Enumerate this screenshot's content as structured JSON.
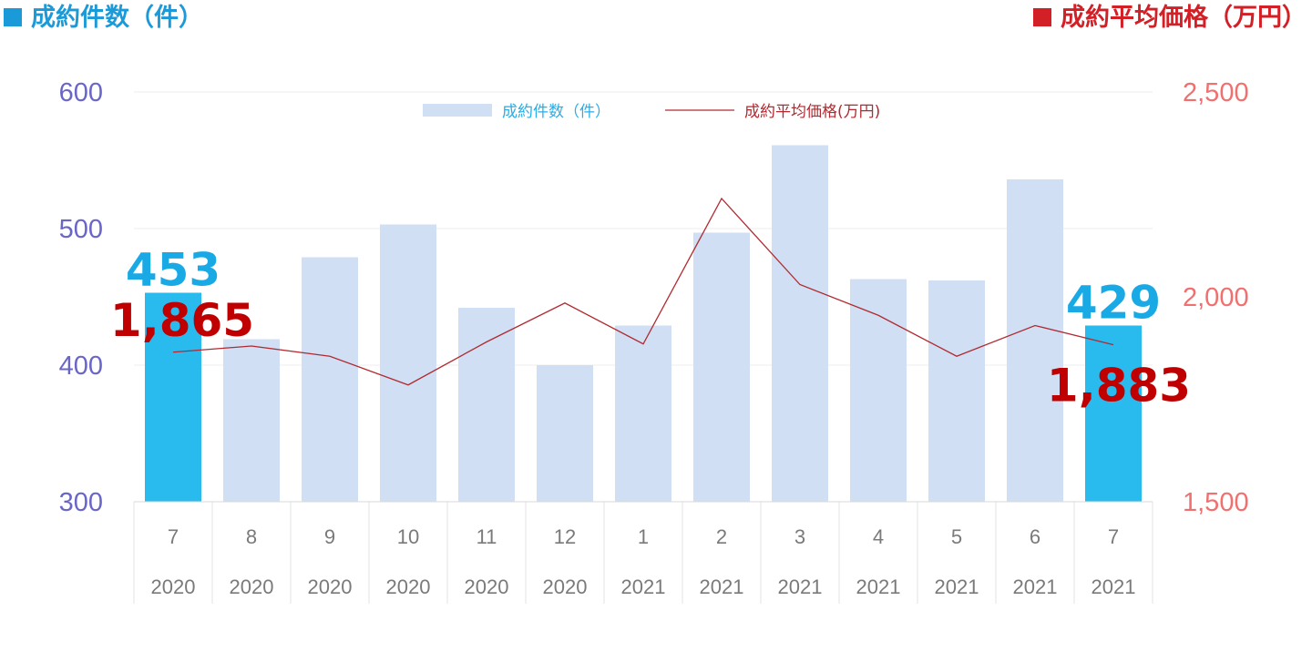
{
  "header": {
    "left_title": "成約件数（件）",
    "right_title": "成約平均価格（万円）"
  },
  "legend": {
    "bars_label": "成約件数（件）",
    "line_label": "成約平均価格(万円)"
  },
  "colors": {
    "bar": "#d0dff3",
    "bar_highlight": "#29bbee",
    "line": "#b02a30",
    "left_axis": "#6a66c8",
    "right_axis": "#f07070",
    "count_label": "#19aae6",
    "price_label": "#c00000",
    "header_left": "#1a9ad8",
    "header_right": "#d32026"
  },
  "chart_data": {
    "type": "bar",
    "categories": [
      "7",
      "8",
      "9",
      "10",
      "11",
      "12",
      "1",
      "2",
      "3",
      "4",
      "5",
      "6",
      "7"
    ],
    "years": [
      "2020",
      "2020",
      "2020",
      "2020",
      "2020",
      "2020",
      "2021",
      "2021",
      "2021",
      "2021",
      "2021",
      "2021",
      "2021"
    ],
    "y_left": {
      "min": 300,
      "max": 600,
      "ticks": [
        "300",
        "400",
        "500",
        "600"
      ]
    },
    "y_right": {
      "min": 1500,
      "max": 2500,
      "ticks": [
        "1,500",
        "2,000",
        "2,500"
      ]
    },
    "series": [
      {
        "name": "成約件数（件）",
        "type": "bar",
        "axis": "left",
        "values": [
          453,
          419,
          479,
          503,
          442,
          400,
          429,
          497,
          561,
          463,
          462,
          536,
          429
        ],
        "highlight": [
          0,
          12
        ]
      },
      {
        "name": "成約平均価格(万円)",
        "type": "line",
        "axis": "right",
        "values": [
          1865,
          1880,
          1855,
          1785,
          1890,
          1985,
          1885,
          2240,
          2030,
          1955,
          1855,
          1930,
          1883
        ]
      }
    ],
    "annotations": [
      {
        "series": 0,
        "index": 0,
        "text": "453"
      },
      {
        "series": 0,
        "index": 12,
        "text": "429"
      },
      {
        "series": 1,
        "index": 0,
        "text": "1,865"
      },
      {
        "series": 1,
        "index": 12,
        "text": "1,883"
      }
    ],
    "grid": true,
    "legend_position": "top-center"
  }
}
